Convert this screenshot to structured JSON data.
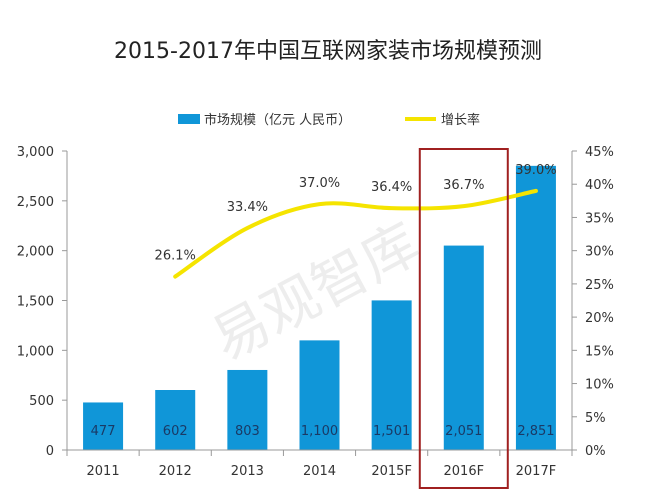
{
  "chart_data": {
    "type": "bar",
    "title": "2015-2017年中国互联网家装市场规模预测",
    "categories": [
      "2011",
      "2012",
      "2013",
      "2014",
      "2015F",
      "2016F",
      "2017F"
    ],
    "series": [
      {
        "name": "市场规模（亿元 人民币）",
        "type": "bar",
        "axis": "left",
        "values": [
          477,
          602,
          803,
          1100,
          1501,
          2051,
          2851
        ],
        "value_labels": [
          "477",
          "602",
          "803",
          "1,100",
          "1,501",
          "2,051",
          "2,851"
        ]
      },
      {
        "name": "增长率",
        "type": "line",
        "axis": "right",
        "values": [
          null,
          26.1,
          33.4,
          37.0,
          36.4,
          36.7,
          39.0
        ],
        "value_labels": [
          "",
          "26.1%",
          "33.4%",
          "37.0%",
          "36.4%",
          "36.7%",
          "39.0%"
        ]
      }
    ],
    "y_left": {
      "range": [
        0,
        3000
      ],
      "ticks": [
        0,
        500,
        1000,
        1500,
        2000,
        2500,
        3000
      ],
      "tick_labels": [
        "0",
        "500",
        "1,000",
        "1,500",
        "2,000",
        "2,500",
        "3,000"
      ]
    },
    "y_right": {
      "range": [
        0,
        45
      ],
      "ticks": [
        0,
        5,
        10,
        15,
        20,
        25,
        30,
        35,
        40,
        45
      ],
      "tick_labels": [
        "0%",
        "5%",
        "10%",
        "15%",
        "20%",
        "25%",
        "30%",
        "35%",
        "40%",
        "45%"
      ]
    },
    "legend_position": "top-center",
    "grid": false,
    "highlight_category": "2016F",
    "watermark": "易观智库",
    "colors": {
      "bar": "#1096d8",
      "line": "#f5e400",
      "highlight": "#a02020",
      "label_light": "#1a3a66",
      "text": "#333333"
    }
  }
}
